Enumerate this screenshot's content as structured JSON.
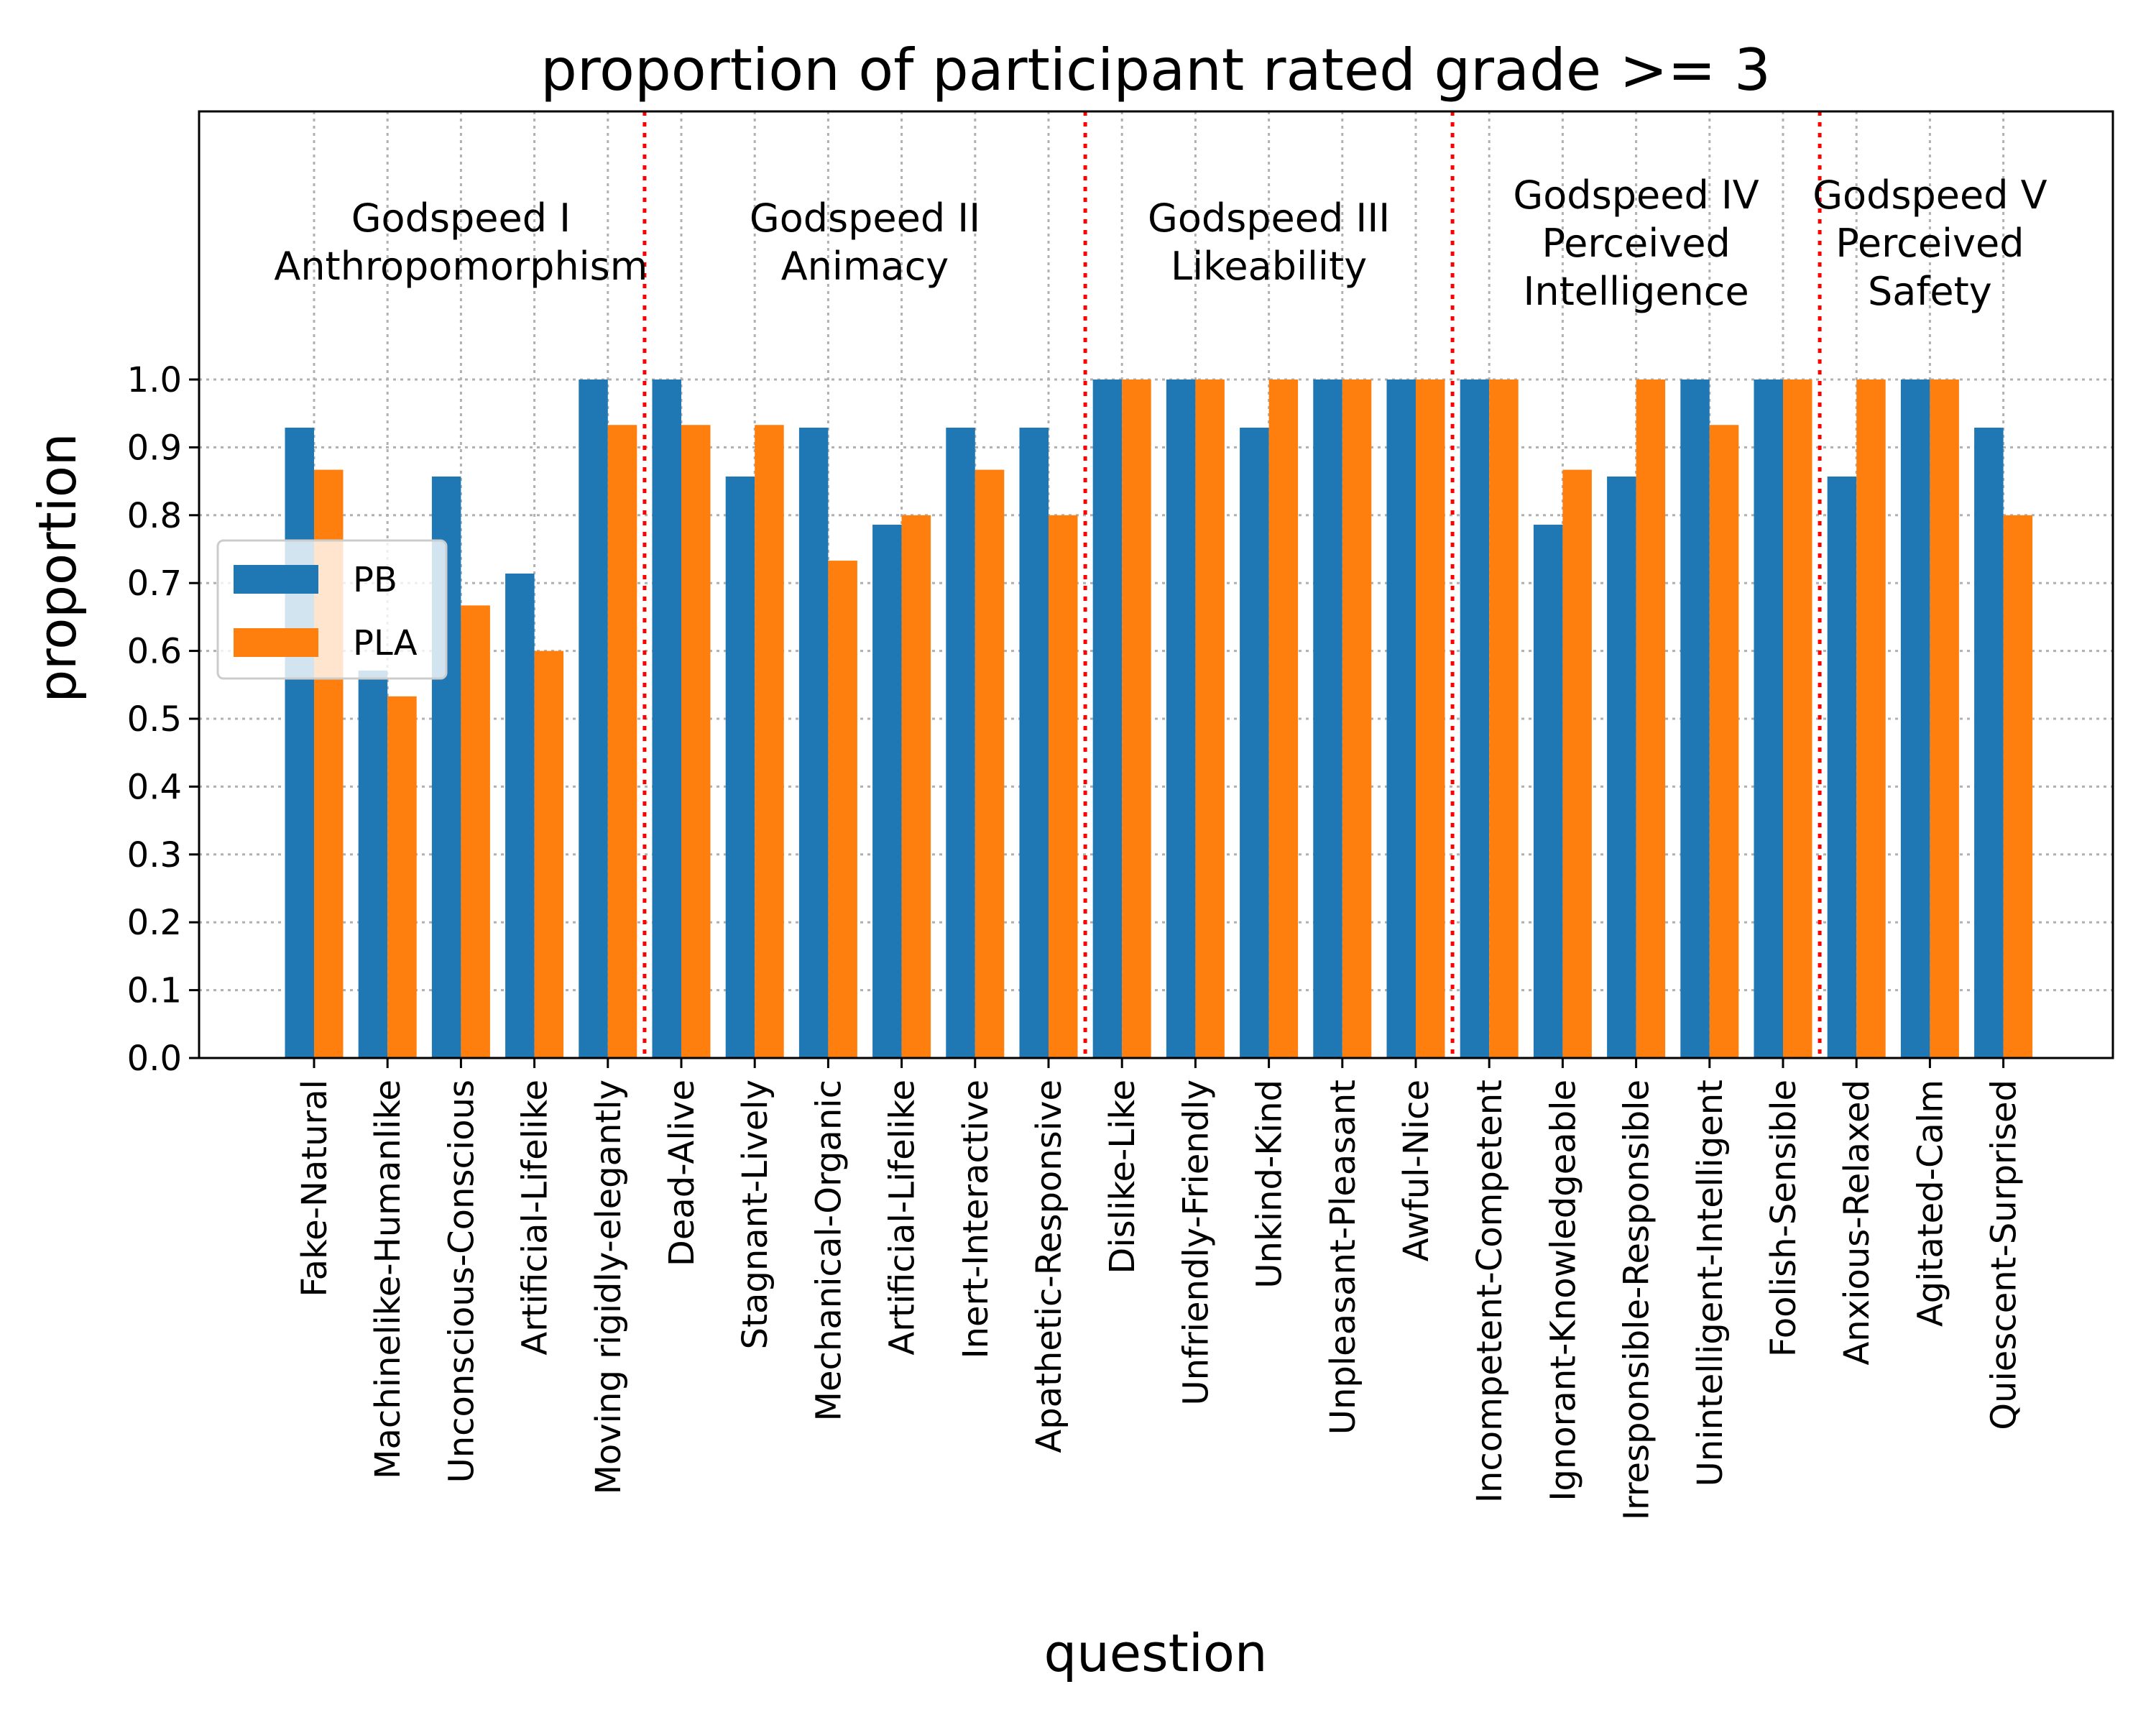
{
  "chart_data": {
    "type": "bar",
    "title": "proportion of participant rated grade >= 3",
    "xlabel": "question",
    "ylabel": "proportion",
    "ylim": [
      0,
      1.4
    ],
    "yticks": [
      "0.0",
      "0.1",
      "0.2",
      "0.3",
      "0.4",
      "0.5",
      "0.6",
      "0.7",
      "0.8",
      "0.9",
      "1.0"
    ],
    "grid": true,
    "legend_position": "center-left",
    "categories": [
      "Fake-Natural",
      "Machinelike-Humanlike",
      "Unconscious-Conscious",
      "Artificial-Lifelike",
      "Moving rigidly-elegantly",
      "Dead-Alive",
      "Stagnant-Lively",
      "Mechanical-Organic",
      "Artificial-Lifelike",
      "Inert-Interactive",
      "Apathetic-Responsive",
      "Dislike-Like",
      "Unfriendly-Friendly",
      "Unkind-Kind",
      "Unpleasant-Pleasant",
      "Awful-Nice",
      "Incompetent-Competent",
      "Ignorant-Knowledgeable",
      "Irresponsible-Responsible",
      "Unintelligent-Intelligent",
      "Foolish-Sensible",
      "Anxious-Relaxed",
      "Agitated-Calm",
      "Quiescent-Surprised"
    ],
    "series": [
      {
        "name": "PB",
        "color": "#1f77b4",
        "values": [
          0.929,
          0.571,
          0.857,
          0.714,
          1.0,
          1.0,
          0.857,
          0.929,
          0.786,
          0.929,
          0.929,
          1.0,
          1.0,
          0.929,
          1.0,
          1.0,
          1.0,
          0.786,
          0.857,
          1.0,
          1.0,
          0.857,
          1.0,
          0.929
        ]
      },
      {
        "name": "PLA",
        "color": "#ff7f0e",
        "values": [
          0.867,
          0.533,
          0.667,
          0.6,
          0.933,
          0.933,
          0.933,
          0.733,
          0.8,
          0.867,
          0.8,
          1.0,
          1.0,
          1.0,
          1.0,
          1.0,
          1.0,
          0.867,
          1.0,
          0.933,
          1.0,
          1.0,
          1.0,
          0.8
        ]
      }
    ],
    "groups": [
      {
        "lines": [
          "Godspeed I",
          "Anthropomorphism"
        ],
        "start": 0,
        "end": 4
      },
      {
        "lines": [
          "Godspeed II",
          "Animacy"
        ],
        "start": 5,
        "end": 10
      },
      {
        "lines": [
          "Godspeed III",
          "Likeability"
        ],
        "start": 11,
        "end": 15
      },
      {
        "lines": [
          "Godspeed IV",
          "Perceived",
          "Intelligence"
        ],
        "start": 16,
        "end": 20
      },
      {
        "lines": [
          "Godspeed V",
          "Perceived",
          "Safety"
        ],
        "start": 21,
        "end": 23
      }
    ],
    "separators_after": [
      4,
      10,
      15,
      20
    ],
    "separator_color": "#ff0000"
  }
}
